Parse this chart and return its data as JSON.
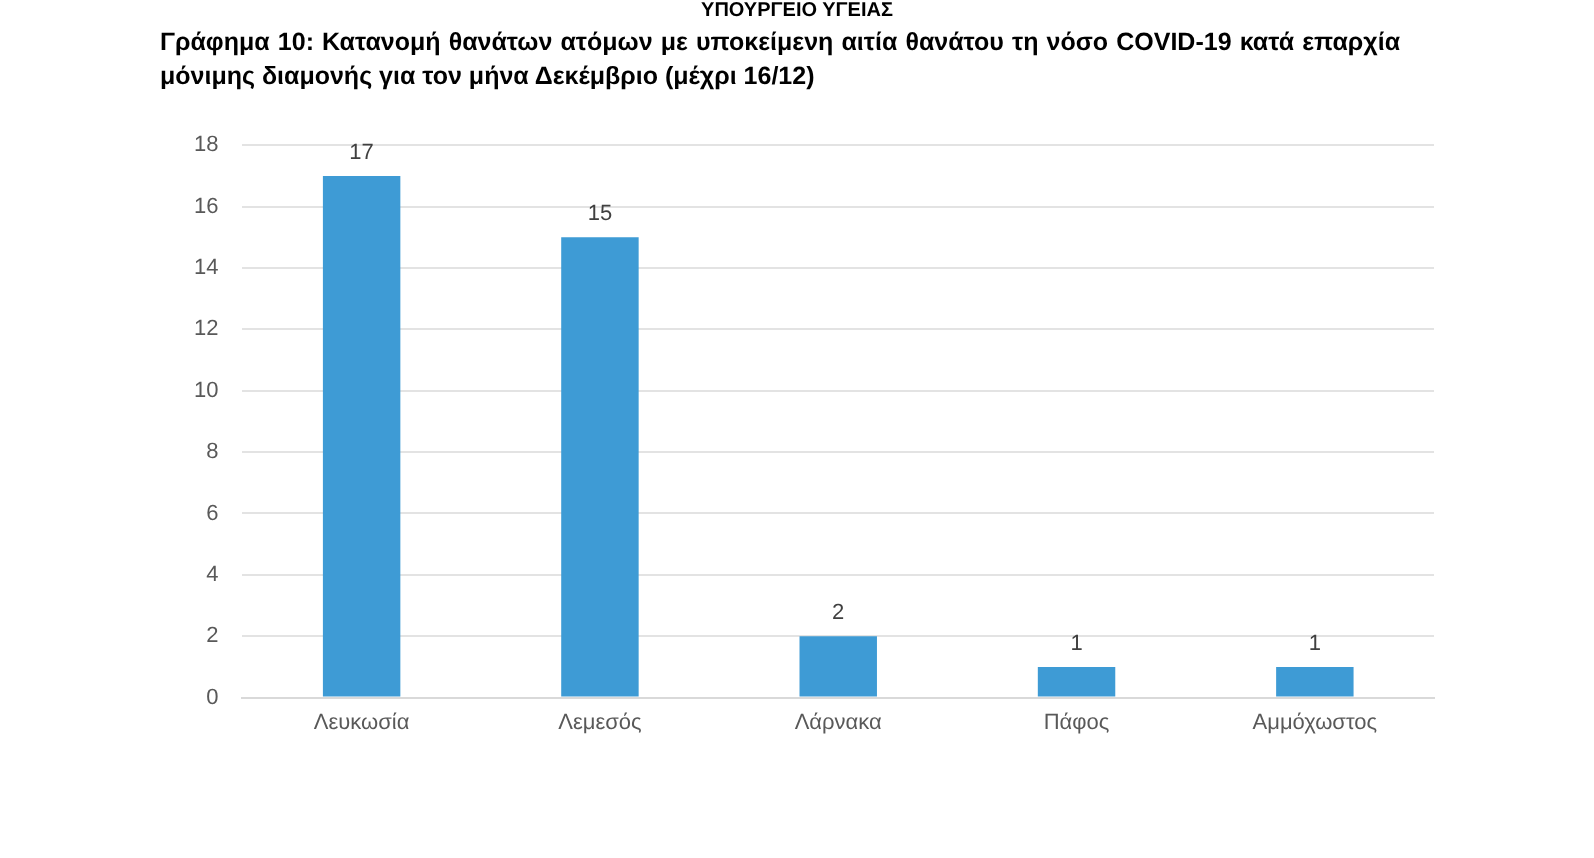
{
  "chart_data": {
    "type": "bar",
    "title": "Γράφημα 10: Κατανομή θανάτων ατόμων με υποκείμενη αιτία θανάτου τη νόσο COVID-19 κατά επαρχία μόνιμης διαμονής για τον μήνα Δεκέμβριο (μέχρι 16/12)",
    "annotations": [
      "ΥΠΟΥΡΓΕΙΟ ΥΓΕΙΑΣ"
    ],
    "categories": [
      "Λευκωσία",
      "Λεμεσός",
      "Λάρνακα",
      "Πάφος",
      "Αμμόχωστος"
    ],
    "values": [
      17,
      15,
      2,
      1,
      1
    ],
    "color": "#3e9bd5",
    "ylim": [
      0,
      18
    ],
    "yticks": [
      0,
      2,
      4,
      6,
      8,
      10,
      12,
      14,
      16,
      18
    ],
    "grid": "y",
    "data_labels": true,
    "legend": false
  }
}
